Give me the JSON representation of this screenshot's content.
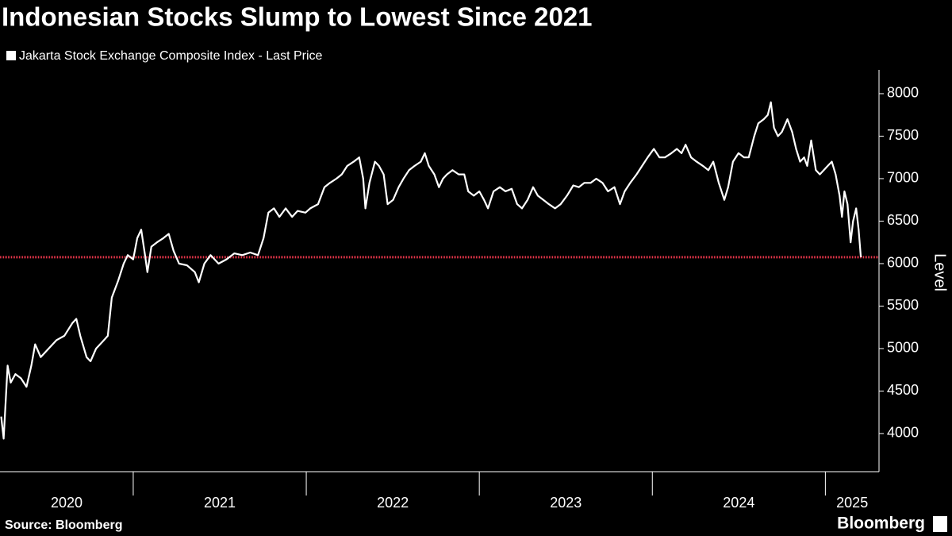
{
  "chart_data": {
    "type": "line",
    "title": "Indonesian Stocks Slump to Lowest Since 2021",
    "y_label": "Level",
    "source": "Source: Bloomberg",
    "brand": "Bloomberg",
    "series": [
      {
        "name": "Jakarta Stock Exchange Composite Index - Last Price",
        "color": "#ffffff",
        "x": [
          2020.237,
          2020.251,
          2020.274,
          2020.292,
          2020.319,
          2020.351,
          2020.383,
          2020.411,
          2020.433,
          2020.465,
          2020.511,
          2020.557,
          2020.602,
          2020.648,
          2020.671,
          2020.694,
          2020.73,
          2020.753,
          2020.785,
          2020.831,
          2020.853,
          2020.876,
          2020.913,
          2020.945,
          2020.968,
          2021.0,
          2021.023,
          2021.046,
          2021.068,
          2021.082,
          2021.105,
          2021.137,
          2021.174,
          2021.205,
          2021.233,
          2021.265,
          2021.31,
          2021.356,
          2021.379,
          2021.411,
          2021.447,
          2021.493,
          2021.539,
          2021.584,
          2021.63,
          2021.676,
          2021.721,
          2021.753,
          2021.781,
          2021.813,
          2021.845,
          2021.881,
          2021.918,
          2021.95,
          2021.995,
          2022.023,
          2022.068,
          2022.105,
          2022.137,
          2022.174,
          2022.205,
          2022.237,
          2022.274,
          2022.306,
          2022.329,
          2022.342,
          2022.365,
          2022.397,
          2022.42,
          2022.447,
          2022.47,
          2022.502,
          2022.534,
          2022.562,
          2022.594,
          2022.626,
          2022.662,
          2022.685,
          2022.708,
          2022.74,
          2022.767,
          2022.79,
          2022.813,
          2022.845,
          2022.881,
          2022.913,
          2022.936,
          2022.968,
          2023.0,
          2023.027,
          2023.05,
          2023.082,
          2023.119,
          2023.151,
          2023.187,
          2023.219,
          2023.247,
          2023.279,
          2023.311,
          2023.338,
          2023.37,
          2023.402,
          2023.438,
          2023.47,
          2023.507,
          2023.543,
          2023.575,
          2023.607,
          2023.644,
          2023.676,
          2023.712,
          2023.744,
          2023.781,
          2023.813,
          2023.84,
          2023.872,
          2023.909,
          2023.941,
          2023.973,
          2024.009,
          2024.041,
          2024.073,
          2024.11,
          2024.142,
          2024.169,
          2024.192,
          2024.224,
          2024.256,
          2024.292,
          2024.324,
          2024.352,
          2024.384,
          2024.416,
          2024.438,
          2024.466,
          2024.498,
          2024.53,
          2024.557,
          2024.589,
          2024.612,
          2024.644,
          2024.667,
          2024.685,
          2024.703,
          2024.726,
          2024.749,
          2024.781,
          2024.808,
          2024.831,
          2024.854,
          2024.877,
          2024.895,
          2024.918,
          2024.945,
          2024.968,
          2025.014,
          2025.037,
          2025.059,
          2025.082,
          2025.096,
          2025.11,
          2025.128,
          2025.146,
          2025.16,
          2025.178,
          2025.192,
          2025.205
        ],
        "values": [
          4200,
          3940,
          4800,
          4600,
          4700,
          4650,
          4550,
          4800,
          5050,
          4900,
          5000,
          5100,
          5150,
          5300,
          5350,
          5150,
          4900,
          4850,
          5000,
          5100,
          5150,
          5600,
          5800,
          6000,
          6100,
          6050,
          6300,
          6400,
          6100,
          5900,
          6200,
          6250,
          6300,
          6350,
          6150,
          6000,
          5980,
          5900,
          5780,
          6000,
          6100,
          6000,
          6050,
          6120,
          6100,
          6130,
          6100,
          6300,
          6600,
          6650,
          6550,
          6650,
          6550,
          6620,
          6600,
          6650,
          6700,
          6900,
          6950,
          7000,
          7050,
          7150,
          7200,
          7250,
          7000,
          6650,
          6950,
          7200,
          7150,
          7050,
          6700,
          6750,
          6900,
          7000,
          7100,
          7150,
          7200,
          7300,
          7150,
          7050,
          6900,
          7000,
          7050,
          7100,
          7050,
          7050,
          6850,
          6800,
          6850,
          6750,
          6650,
          6850,
          6900,
          6850,
          6880,
          6700,
          6650,
          6750,
          6900,
          6800,
          6750,
          6700,
          6650,
          6700,
          6800,
          6920,
          6900,
          6950,
          6950,
          7000,
          6950,
          6850,
          6900,
          6700,
          6850,
          6950,
          7050,
          7150,
          7250,
          7350,
          7250,
          7250,
          7300,
          7350,
          7300,
          7400,
          7250,
          7200,
          7150,
          7100,
          7200,
          6950,
          6750,
          6900,
          7200,
          7300,
          7250,
          7250,
          7500,
          7650,
          7700,
          7750,
          7900,
          7600,
          7500,
          7550,
          7700,
          7550,
          7350,
          7200,
          7250,
          7150,
          7450,
          7100,
          7050,
          7150,
          7200,
          7050,
          6800,
          6550,
          6850,
          6700,
          6250,
          6500,
          6650,
          6400,
          6076
        ]
      }
    ],
    "hline": 6076,
    "hline_color": "#e8354a",
    "xlim": [
      2020.23,
      2025.31
    ],
    "xticks": [
      2020,
      2021,
      2022,
      2023,
      2024,
      2025
    ],
    "ylim": [
      3551,
      8280
    ],
    "yticks": [
      4000,
      4500,
      5000,
      5500,
      6000,
      6500,
      7000,
      7500,
      8000
    ]
  }
}
